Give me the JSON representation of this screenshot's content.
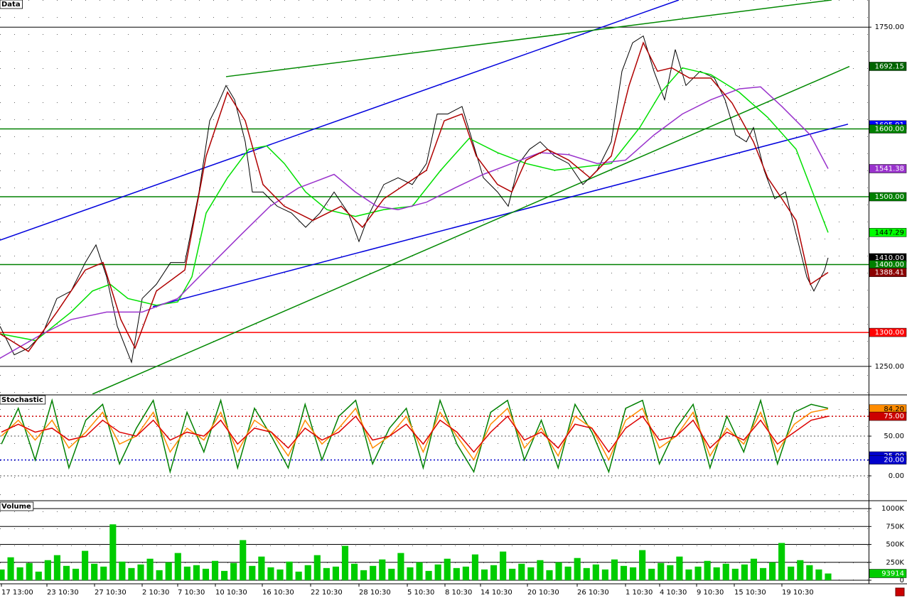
{
  "chart_data": [
    {
      "type": "line",
      "title": "Data",
      "xlim": [
        0,
        1222
      ],
      "ylim": [
        1209,
        1790
      ],
      "grid": "solid",
      "yticks": [
        {
          "value": 1250,
          "label": "1250.00"
        },
        {
          "value": 1750,
          "label": "1750.00"
        }
      ],
      "series": [
        {
          "color": "#000000",
          "x": [
            0,
            20,
            40,
            60,
            80,
            100,
            120,
            135,
            150,
            165,
            185,
            200,
            220,
            240,
            260,
            280,
            295,
            305,
            318,
            330,
            345,
            355,
            370,
            390,
            410,
            430,
            450,
            470,
            490,
            505,
            520,
            540,
            560,
            580,
            600,
            615,
            630,
            650,
            665,
            680,
            700,
            715,
            730,
            745,
            760,
            780,
            800,
            820,
            840,
            860,
            875,
            890,
            905,
            920,
            935,
            950,
            965,
            985,
            1005,
            1020,
            1035,
            1050,
            1060,
            1075,
            1090,
            1105,
            1120,
            1135,
            1145,
            1160,
            1165
          ],
          "values": [
            1309,
            1267,
            1277,
            1298,
            1350,
            1361,
            1403,
            1429,
            1382,
            1309,
            1256,
            1350,
            1371,
            1403,
            1403,
            1507,
            1612,
            1633,
            1664,
            1643,
            1581,
            1507,
            1507,
            1486,
            1476,
            1455,
            1476,
            1507,
            1476,
            1434,
            1476,
            1518,
            1528,
            1518,
            1549,
            1622,
            1622,
            1633,
            1581,
            1528,
            1507,
            1486,
            1549,
            1570,
            1581,
            1560,
            1549,
            1518,
            1539,
            1581,
            1685,
            1727,
            1737,
            1685,
            1643,
            1717,
            1664,
            1685,
            1675,
            1643,
            1591,
            1581,
            1602,
            1539,
            1497,
            1507,
            1445,
            1382,
            1361,
            1392,
            1410
          ]
        },
        {
          "color": "#00e000",
          "x": [
            0,
            50,
            100,
            130,
            155,
            180,
            220,
            250,
            270,
            290,
            320,
            350,
            375,
            400,
            430,
            460,
            500,
            540,
            580,
            620,
            660,
            700,
            740,
            780,
            820,
            860,
            900,
            930,
            960,
            1000,
            1040,
            1080,
            1120,
            1165
          ],
          "values": [
            1298,
            1288,
            1330,
            1361,
            1371,
            1350,
            1340,
            1345,
            1382,
            1476,
            1528,
            1570,
            1575,
            1549,
            1507,
            1481,
            1471,
            1481,
            1486,
            1539,
            1586,
            1565,
            1549,
            1539,
            1544,
            1549,
            1602,
            1654,
            1690,
            1680,
            1654,
            1617,
            1570,
            1447.29
          ]
        },
        {
          "color": "#9932cc",
          "x": [
            0,
            60,
            100,
            150,
            200,
            250,
            300,
            340,
            380,
            420,
            470,
            500,
            530,
            560,
            600,
            640,
            680,
            720,
            760,
            800,
            840,
            880,
            920,
            960,
            1000,
            1040,
            1070,
            1100,
            1140,
            1165
          ],
          "values": [
            1262,
            1298,
            1319,
            1330,
            1330,
            1350,
            1403,
            1445,
            1486,
            1513,
            1533,
            1507,
            1486,
            1481,
            1492,
            1513,
            1533,
            1549,
            1565,
            1562,
            1549,
            1554,
            1591,
            1622,
            1643,
            1659,
            1662,
            1633,
            1591,
            1541.38
          ]
        },
        {
          "color": "#b00000",
          "x": [
            0,
            40,
            80,
            120,
            145,
            170,
            190,
            220,
            260,
            290,
            320,
            345,
            370,
            400,
            440,
            480,
            510,
            540,
            570,
            600,
            625,
            650,
            670,
            700,
            720,
            740,
            770,
            800,
            830,
            860,
            885,
            905,
            925,
            945,
            970,
            1000,
            1030,
            1060,
            1080,
            1100,
            1120,
            1140,
            1165
          ],
          "values": [
            1298,
            1272,
            1330,
            1392,
            1403,
            1319,
            1277,
            1361,
            1392,
            1560,
            1654,
            1612,
            1518,
            1486,
            1465,
            1486,
            1455,
            1497,
            1518,
            1539,
            1612,
            1622,
            1560,
            1518,
            1507,
            1554,
            1570,
            1554,
            1528,
            1560,
            1664,
            1727,
            1685,
            1690,
            1675,
            1675,
            1638,
            1581,
            1528,
            1497,
            1465,
            1371,
            1388.41
          ]
        }
      ],
      "trendlines": [
        {
          "color": "#0000dd",
          "x": [
            0,
            955
          ],
          "values": [
            1436,
            1790
          ]
        },
        {
          "color": "#0000dd",
          "x": [
            215,
            1193
          ],
          "values": [
            1338,
            1607
          ]
        },
        {
          "color": "#008800",
          "x": [
            130,
            1195
          ],
          "values": [
            1209,
            1692
          ]
        },
        {
          "color": "#008800",
          "x": [
            318,
            1170
          ],
          "values": [
            1677,
            1790
          ]
        }
      ],
      "markers": [
        {
          "value": 1692.15,
          "label": "1692.15",
          "color": "#006400",
          "hline": "none"
        },
        {
          "value": 1605.91,
          "label": "1605.91",
          "color": "#0000ff",
          "hline": "none"
        },
        {
          "value": 1600,
          "label": "1600.00",
          "color": "#008000",
          "hline": "solid"
        },
        {
          "value": 1541.38,
          "label": "1541.38",
          "color": "#9932cc",
          "hline": "none"
        },
        {
          "value": 1500,
          "label": "1500.00",
          "color": "#008000",
          "hline": "solid"
        },
        {
          "value": 1447.29,
          "label": "1447.29",
          "color": "#00ff00",
          "hline": "none"
        },
        {
          "value": 1410,
          "label": "1410.00",
          "color": "#000000",
          "hline": "none"
        },
        {
          "value": 1400,
          "label": "1400.00",
          "color": "#008000",
          "hline": "solid"
        },
        {
          "value": 1388.41,
          "label": "1388.41",
          "color": "#8b0000",
          "hline": "none"
        },
        {
          "value": 1300,
          "label": "1300.00",
          "color": "#ff0000",
          "hline": "solid"
        }
      ]
    },
    {
      "type": "line",
      "title": "Stochastic",
      "xlim": [
        0,
        1222
      ],
      "ylim": [
        -29.5,
        101
      ],
      "grid": "dotted",
      "yticks": [
        {
          "value": 0,
          "label": "0.00"
        },
        {
          "value": 50,
          "label": "50.00"
        }
      ],
      "series": [
        {
          "color": "#008000",
          "values": [
            40,
            85,
            20,
            95,
            10,
            70,
            90,
            15,
            60,
            95,
            5,
            80,
            30,
            95,
            10,
            85,
            50,
            10,
            90,
            20,
            75,
            95,
            15,
            60,
            85,
            10,
            95,
            40,
            5,
            80,
            95,
            20,
            70,
            10,
            90,
            55,
            5,
            85,
            95,
            15,
            60,
            90,
            10,
            75,
            30,
            95,
            15,
            80,
            90,
            85
          ]
        },
        {
          "color": "#ff8c00",
          "values": [
            50,
            70,
            45,
            70,
            35,
            55,
            80,
            40,
            50,
            80,
            30,
            60,
            45,
            80,
            30,
            70,
            55,
            25,
            70,
            40,
            60,
            85,
            35,
            50,
            75,
            30,
            80,
            50,
            20,
            65,
            85,
            35,
            60,
            25,
            75,
            60,
            20,
            70,
            85,
            35,
            50,
            80,
            25,
            60,
            40,
            80,
            30,
            65,
            80,
            84.2
          ]
        },
        {
          "color": "#dd0000",
          "values": [
            55,
            65,
            55,
            60,
            45,
            50,
            70,
            55,
            50,
            70,
            45,
            55,
            50,
            70,
            40,
            60,
            55,
            35,
            60,
            45,
            55,
            75,
            45,
            50,
            65,
            40,
            70,
            55,
            30,
            55,
            75,
            45,
            55,
            35,
            65,
            60,
            30,
            60,
            75,
            45,
            50,
            70,
            35,
            55,
            45,
            70,
            40,
            55,
            70,
            75
          ]
        }
      ],
      "markers": [
        {
          "value": 84.2,
          "label": "84.20",
          "color": "#ff8c00",
          "hline": "none"
        },
        {
          "value": 75,
          "label": "75.00",
          "color": "#cc0000",
          "hline": "dotted"
        },
        {
          "value": 25,
          "label": "25.00",
          "color": "#0000cc",
          "hline": "none"
        },
        {
          "value": 20,
          "label": "20.00",
          "color": "#0000cc",
          "hline": "dotted"
        }
      ]
    },
    {
      "type": "bar",
      "title": "Volume",
      "xlim": [
        0,
        1222
      ],
      "ylim": [
        -30000,
        1090000
      ],
      "grid": "solid",
      "color": "#00cc00",
      "yticks": [
        0,
        {
          "value": 250000,
          "label": "250K"
        },
        {
          "value": 500000,
          "label": "500K"
        },
        {
          "value": 750000,
          "label": "750K"
        },
        {
          "value": 1000000,
          "label": "1000K"
        }
      ],
      "values": [
        150000,
        320000,
        180000,
        240000,
        120000,
        280000,
        350000,
        200000,
        160000,
        410000,
        230000,
        190000,
        780000,
        260000,
        170000,
        220000,
        300000,
        140000,
        250000,
        380000,
        190000,
        210000,
        160000,
        270000,
        130000,
        240000,
        560000,
        200000,
        330000,
        180000,
        150000,
        260000,
        120000,
        210000,
        350000,
        170000,
        190000,
        480000,
        230000,
        140000,
        200000,
        290000,
        160000,
        380000,
        180000,
        250000,
        130000,
        220000,
        300000,
        170000,
        190000,
        360000,
        150000,
        210000,
        400000,
        160000,
        230000,
        180000,
        280000,
        140000,
        250000,
        190000,
        310000,
        170000,
        220000,
        150000,
        290000,
        200000,
        180000,
        420000,
        160000,
        240000,
        210000,
        330000,
        150000,
        190000,
        270000,
        180000,
        230000,
        160000,
        220000,
        300000,
        170000,
        250000,
        520000,
        190000,
        280000,
        210000,
        150000,
        93914
      ],
      "markers": [
        {
          "value": 93914,
          "label": "93914",
          "color": "#00cc00",
          "hline": "none"
        }
      ],
      "xticks": [
        {
          "value": 2,
          "label": "17 13:00"
        },
        {
          "value": 66,
          "label": "23 10:30"
        },
        {
          "value": 133,
          "label": "27 10:30"
        },
        {
          "value": 200,
          "label": "2 10:30"
        },
        {
          "value": 250,
          "label": "7 10:30"
        },
        {
          "value": 303,
          "label": "10 10:30"
        },
        {
          "value": 369,
          "label": "16 10:30"
        },
        {
          "value": 437,
          "label": "22 10:30"
        },
        {
          "value": 505,
          "label": "28 10:30"
        },
        {
          "value": 573,
          "label": "5 10:30"
        },
        {
          "value": 626,
          "label": "8 10:30"
        },
        {
          "value": 676,
          "label": "14 10:30"
        },
        {
          "value": 742,
          "label": "20 10:30"
        },
        {
          "value": 812,
          "label": "26 10:30"
        },
        {
          "value": 880,
          "label": "1 10:30"
        },
        {
          "value": 928,
          "label": "4 10:30"
        },
        {
          "value": 980,
          "label": "9 10:30"
        },
        {
          "value": 1033,
          "label": "15 10:30"
        },
        {
          "value": 1100,
          "label": "19 10:30"
        }
      ]
    }
  ]
}
